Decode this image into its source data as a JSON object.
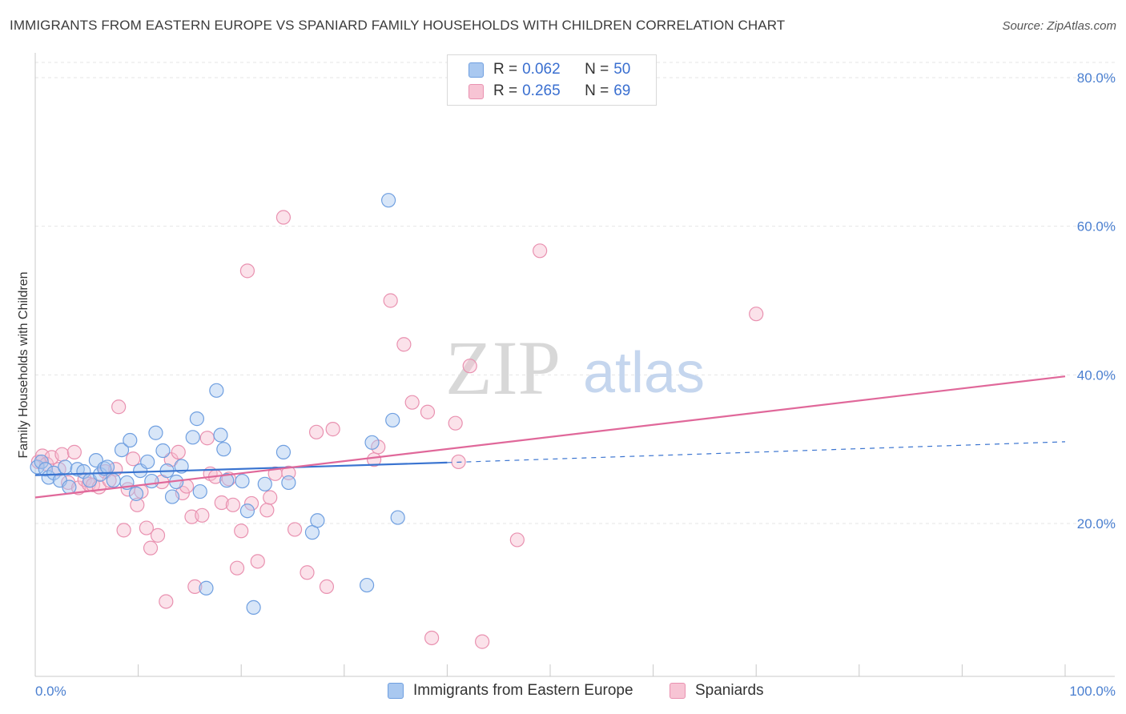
{
  "title": "IMMIGRANTS FROM EASTERN EUROPE VS SPANIARD FAMILY HOUSEHOLDS WITH CHILDREN CORRELATION CHART",
  "source": "Source: ZipAtlas.com",
  "watermark": {
    "zip": "ZIP",
    "atlas": "atlas"
  },
  "legend": {
    "rows": [
      {
        "r_label": "R =",
        "r_value": "0.062",
        "n_label": "N =",
        "n_value": "50"
      },
      {
        "r_label": "R =",
        "r_value": "0.265",
        "n_label": "N =",
        "n_value": "69"
      }
    ]
  },
  "bottom_legend": [
    "Immigrants from Eastern Europe",
    "Spaniards"
  ],
  "colors": {
    "blue_fill": "#a9c8f0",
    "blue_stroke": "#6f9fe0",
    "blue_line": "#3a74d0",
    "pink_fill": "#f7bfd0",
    "pink_stroke": "#e991b0",
    "pink_line": "#e0689a",
    "axis_text": "#4a7fd0",
    "grid": "#e6e6e6"
  },
  "chart_data": {
    "type": "scatter",
    "xlabel": "",
    "ylabel": "Family Households with Children",
    "xlim": [
      0,
      100
    ],
    "ylim": [
      0,
      85
    ],
    "y_ticks": [
      {
        "v": 20,
        "label": "20.0%"
      },
      {
        "v": 40,
        "label": "40.0%"
      },
      {
        "v": 60,
        "label": "60.0%"
      },
      {
        "v": 80,
        "label": "80.0%"
      }
    ],
    "x_tick_labels": {
      "left": "0.0%",
      "right": "100.0%"
    },
    "series": [
      {
        "name": "Immigrants from Eastern Europe",
        "color": "blue",
        "trend": {
          "x0": 0,
          "y0": 26.5,
          "x1_solid": 40,
          "y1_solid": 28.2,
          "x1": 100,
          "y1": 31.0
        },
        "points": [
          [
            0.2,
            27.6
          ],
          [
            0.6,
            28.3
          ],
          [
            1.0,
            27.3
          ],
          [
            1.3,
            26.2
          ],
          [
            1.8,
            26.8
          ],
          [
            2.4,
            25.8
          ],
          [
            2.9,
            27.6
          ],
          [
            3.3,
            24.9
          ],
          [
            4.1,
            27.3
          ],
          [
            4.7,
            27.0
          ],
          [
            5.3,
            25.8
          ],
          [
            5.9,
            28.5
          ],
          [
            6.3,
            26.6
          ],
          [
            6.7,
            27.4
          ],
          [
            7.0,
            27.6
          ],
          [
            7.6,
            25.8
          ],
          [
            8.4,
            29.9
          ],
          [
            8.9,
            25.5
          ],
          [
            9.2,
            31.2
          ],
          [
            9.8,
            24.0
          ],
          [
            10.2,
            27.1
          ],
          [
            10.9,
            28.3
          ],
          [
            11.3,
            25.7
          ],
          [
            11.7,
            32.2
          ],
          [
            12.4,
            29.8
          ],
          [
            12.8,
            27.1
          ],
          [
            13.3,
            23.6
          ],
          [
            13.7,
            25.6
          ],
          [
            14.2,
            27.7
          ],
          [
            15.3,
            31.6
          ],
          [
            15.7,
            34.1
          ],
          [
            16.0,
            24.3
          ],
          [
            16.6,
            11.3
          ],
          [
            17.6,
            37.9
          ],
          [
            18.0,
            31.9
          ],
          [
            18.3,
            30.0
          ],
          [
            18.6,
            25.8
          ],
          [
            20.1,
            25.7
          ],
          [
            20.6,
            21.7
          ],
          [
            21.2,
            8.7
          ],
          [
            22.3,
            25.3
          ],
          [
            24.1,
            29.6
          ],
          [
            24.6,
            25.5
          ],
          [
            26.9,
            18.8
          ],
          [
            27.4,
            20.4
          ],
          [
            32.2,
            11.7
          ],
          [
            32.7,
            30.9
          ],
          [
            34.3,
            63.5
          ],
          [
            34.7,
            33.9
          ],
          [
            35.2,
            20.8
          ]
        ]
      },
      {
        "name": "Spaniards",
        "color": "pink",
        "trend": {
          "x0": 0,
          "y0": 23.5,
          "x1": 100,
          "y1": 39.8
        },
        "points": [
          [
            0.3,
            28.3
          ],
          [
            0.7,
            29.1
          ],
          [
            1.1,
            28.0
          ],
          [
            1.6,
            28.9
          ],
          [
            2.3,
            27.3
          ],
          [
            2.6,
            29.3
          ],
          [
            3.2,
            25.5
          ],
          [
            3.8,
            29.6
          ],
          [
            4.2,
            24.8
          ],
          [
            4.8,
            25.9
          ],
          [
            5.2,
            25.3
          ],
          [
            5.6,
            25.2
          ],
          [
            6.2,
            24.9
          ],
          [
            6.8,
            27.0
          ],
          [
            7.2,
            25.8
          ],
          [
            7.8,
            27.3
          ],
          [
            8.1,
            35.7
          ],
          [
            8.6,
            19.1
          ],
          [
            9.0,
            24.6
          ],
          [
            9.5,
            28.7
          ],
          [
            9.9,
            22.5
          ],
          [
            10.3,
            24.3
          ],
          [
            10.8,
            19.4
          ],
          [
            11.2,
            16.7
          ],
          [
            11.9,
            18.4
          ],
          [
            12.3,
            25.6
          ],
          [
            12.7,
            9.5
          ],
          [
            13.2,
            28.6
          ],
          [
            13.9,
            29.6
          ],
          [
            14.3,
            24.1
          ],
          [
            14.7,
            25.0
          ],
          [
            15.2,
            20.9
          ],
          [
            15.5,
            11.5
          ],
          [
            16.2,
            21.1
          ],
          [
            16.7,
            31.5
          ],
          [
            17.0,
            26.7
          ],
          [
            17.5,
            26.3
          ],
          [
            18.1,
            22.8
          ],
          [
            18.8,
            26.0
          ],
          [
            19.2,
            22.5
          ],
          [
            19.6,
            14.0
          ],
          [
            20.0,
            19.0
          ],
          [
            20.6,
            54.0
          ],
          [
            21.0,
            22.7
          ],
          [
            21.6,
            14.9
          ],
          [
            22.5,
            21.8
          ],
          [
            22.8,
            23.5
          ],
          [
            23.3,
            26.7
          ],
          [
            24.1,
            61.2
          ],
          [
            24.6,
            26.8
          ],
          [
            25.2,
            19.2
          ],
          [
            26.4,
            13.4
          ],
          [
            27.3,
            32.3
          ],
          [
            28.3,
            11.5
          ],
          [
            28.9,
            32.7
          ],
          [
            32.9,
            28.6
          ],
          [
            33.3,
            30.3
          ],
          [
            34.5,
            50.0
          ],
          [
            35.8,
            44.1
          ],
          [
            36.6,
            36.3
          ],
          [
            38.1,
            35.0
          ],
          [
            38.5,
            4.6
          ],
          [
            40.8,
            33.5
          ],
          [
            41.1,
            28.3
          ],
          [
            42.2,
            41.2
          ],
          [
            43.4,
            4.1
          ],
          [
            46.8,
            17.8
          ],
          [
            49.0,
            56.7
          ],
          [
            70.0,
            48.2
          ]
        ]
      }
    ]
  }
}
